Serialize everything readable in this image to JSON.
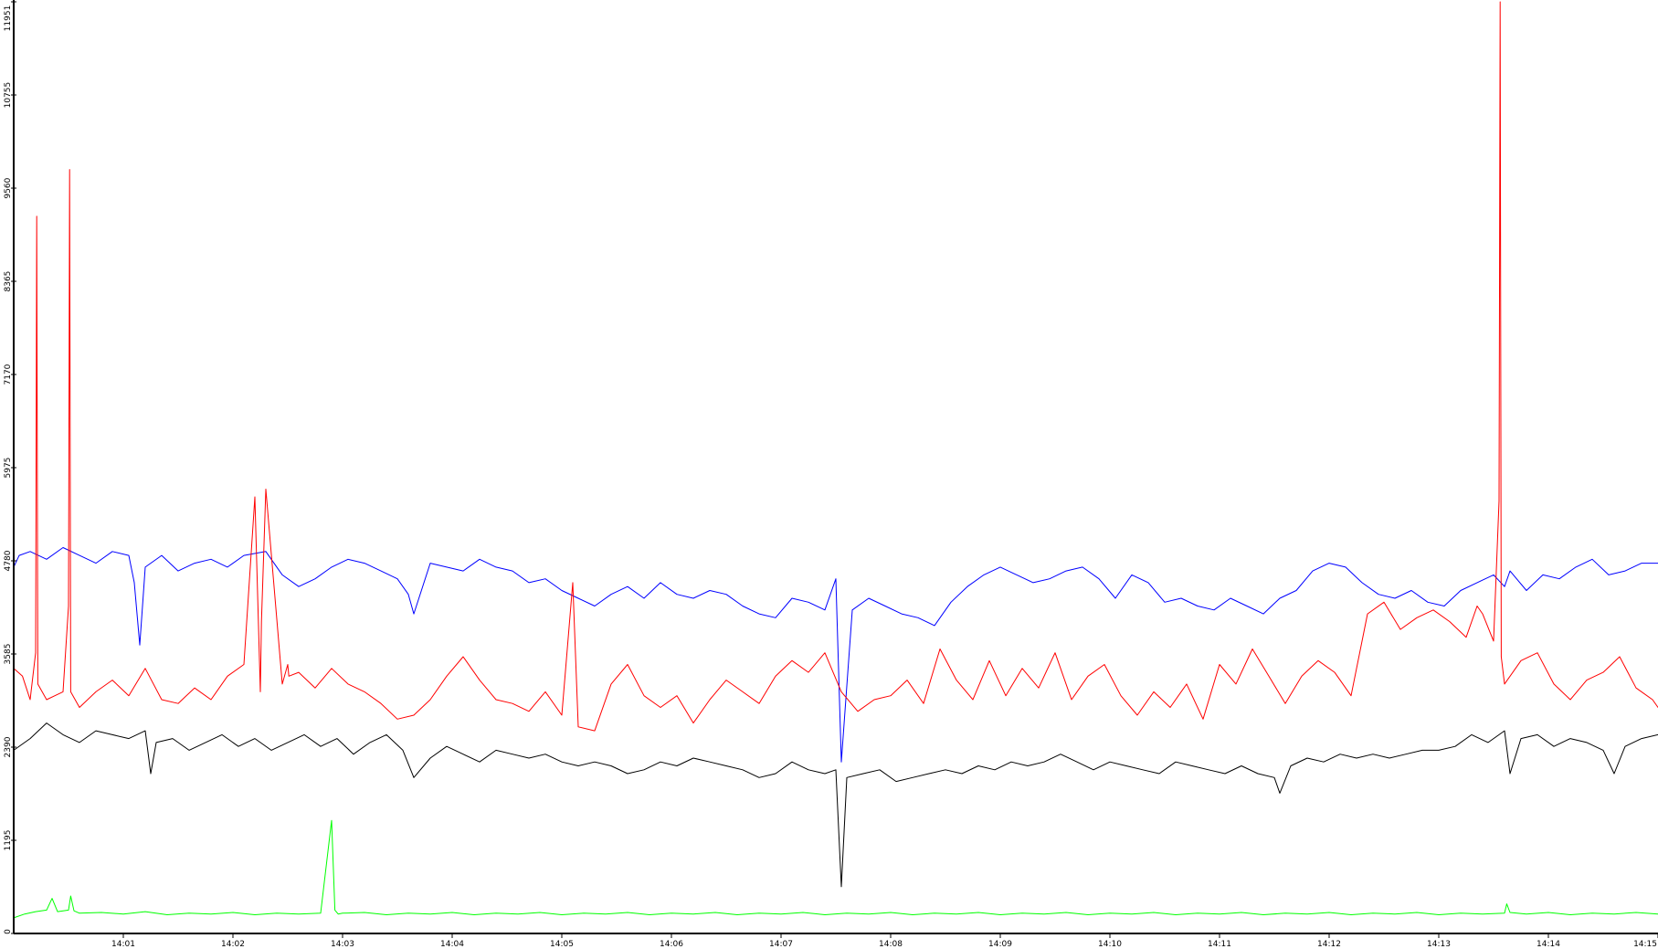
{
  "chart_data": {
    "type": "line",
    "title": "",
    "xlabel": "",
    "ylabel": "",
    "x_tick_labels": [
      "14:01",
      "14:02",
      "14:03",
      "14:04",
      "14:05",
      "14:06",
      "14:07",
      "14:08",
      "14:09",
      "14:10",
      "14:11",
      "14:12",
      "14:13",
      "14:14",
      "14:15"
    ],
    "x_tick_minutes": [
      1,
      2,
      3,
      4,
      5,
      6,
      7,
      8,
      9,
      10,
      11,
      12,
      13,
      14,
      15
    ],
    "y_tick_labels": [
      "0",
      "1195",
      "2390",
      "3585",
      "4780",
      "5975",
      "7170",
      "8365",
      "9560",
      "10755",
      "11951"
    ],
    "y_tick_values": [
      0,
      1195,
      2390,
      3585,
      4780,
      5975,
      7170,
      8365,
      9560,
      10755,
      11951
    ],
    "xlim": [
      0.0,
      15.0
    ],
    "ylim": [
      0,
      11951
    ],
    "grid": false,
    "legend": false,
    "series": [
      {
        "color": "#0000ff",
        "x": [
          0.0,
          0.05,
          0.15,
          0.3,
          0.45,
          0.6,
          0.75,
          0.9,
          1.05,
          1.1,
          1.15,
          1.2,
          1.35,
          1.5,
          1.65,
          1.8,
          1.95,
          2.1,
          2.3,
          2.45,
          2.6,
          2.75,
          2.9,
          3.05,
          3.2,
          3.35,
          3.5,
          3.6,
          3.65,
          3.8,
          3.95,
          4.1,
          4.25,
          4.4,
          4.55,
          4.7,
          4.85,
          5.0,
          5.15,
          5.3,
          5.45,
          5.6,
          5.75,
          5.9,
          6.05,
          6.2,
          6.35,
          6.5,
          6.65,
          6.8,
          6.95,
          7.1,
          7.25,
          7.4,
          7.5,
          7.55,
          7.65,
          7.8,
          7.95,
          8.1,
          8.25,
          8.4,
          8.55,
          8.7,
          8.85,
          9.0,
          9.15,
          9.3,
          9.45,
          9.6,
          9.75,
          9.9,
          10.05,
          10.2,
          10.35,
          10.5,
          10.65,
          10.8,
          10.95,
          11.1,
          11.25,
          11.4,
          11.55,
          11.7,
          11.85,
          12.0,
          12.15,
          12.3,
          12.45,
          12.6,
          12.75,
          12.9,
          13.05,
          13.2,
          13.35,
          13.5,
          13.6,
          13.65,
          13.8,
          13.95,
          14.1,
          14.25,
          14.4,
          14.55,
          14.7,
          14.85,
          15.0
        ],
        "y": [
          4700,
          4850,
          4900,
          4800,
          4950,
          4850,
          4750,
          4900,
          4850,
          4500,
          3700,
          4700,
          4850,
          4650,
          4750,
          4800,
          4700,
          4850,
          4900,
          4600,
          4450,
          4550,
          4700,
          4800,
          4750,
          4650,
          4550,
          4350,
          4100,
          4750,
          4700,
          4650,
          4800,
          4700,
          4650,
          4500,
          4550,
          4400,
          4300,
          4200,
          4350,
          4450,
          4300,
          4500,
          4350,
          4300,
          4400,
          4350,
          4200,
          4100,
          4050,
          4300,
          4250,
          4150,
          4550,
          2200,
          4150,
          4300,
          4200,
          4100,
          4050,
          3950,
          4250,
          4450,
          4600,
          4700,
          4600,
          4500,
          4550,
          4650,
          4700,
          4550,
          4300,
          4600,
          4500,
          4250,
          4300,
          4200,
          4150,
          4300,
          4200,
          4100,
          4300,
          4400,
          4650,
          4750,
          4700,
          4500,
          4350,
          4300,
          4400,
          4250,
          4200,
          4400,
          4500,
          4600,
          4450,
          4650,
          4400,
          4600,
          4550,
          4700,
          4800,
          4600,
          4650,
          4750,
          4750
        ]
      },
      {
        "color": "#ff0000",
        "x": [
          0.0,
          0.08,
          0.15,
          0.2,
          0.21,
          0.22,
          0.3,
          0.45,
          0.5,
          0.51,
          0.52,
          0.6,
          0.75,
          0.9,
          1.05,
          1.2,
          1.35,
          1.5,
          1.65,
          1.8,
          1.95,
          2.1,
          2.2,
          2.25,
          2.26,
          2.3,
          2.45,
          2.5,
          2.51,
          2.6,
          2.75,
          2.9,
          3.05,
          3.2,
          3.35,
          3.5,
          3.65,
          3.8,
          3.95,
          4.1,
          4.25,
          4.4,
          4.55,
          4.7,
          4.85,
          5.0,
          5.1,
          5.15,
          5.3,
          5.45,
          5.6,
          5.75,
          5.9,
          6.05,
          6.2,
          6.35,
          6.5,
          6.65,
          6.8,
          6.95,
          7.1,
          7.25,
          7.4,
          7.55,
          7.7,
          7.85,
          8.0,
          8.15,
          8.3,
          8.45,
          8.6,
          8.75,
          8.9,
          9.05,
          9.2,
          9.35,
          9.5,
          9.65,
          9.8,
          9.95,
          10.1,
          10.25,
          10.4,
          10.55,
          10.7,
          10.85,
          11.0,
          11.15,
          11.3,
          11.45,
          11.6,
          11.75,
          11.9,
          12.05,
          12.2,
          12.35,
          12.5,
          12.65,
          12.8,
          12.95,
          13.1,
          13.25,
          13.35,
          13.4,
          13.5,
          13.55,
          13.56,
          13.57,
          13.6,
          13.75,
          13.9,
          14.05,
          14.2,
          14.35,
          14.5,
          14.65,
          14.8,
          14.95,
          15.0
        ],
        "y": [
          3400,
          3300,
          3000,
          3600,
          9200,
          3200,
          3000,
          3100,
          4200,
          9800,
          3100,
          2900,
          3100,
          3250,
          3050,
          3400,
          3000,
          2950,
          3150,
          3000,
          3300,
          3450,
          5600,
          3100,
          4000,
          5700,
          3200,
          3450,
          3300,
          3350,
          3150,
          3400,
          3200,
          3100,
          2950,
          2750,
          2800,
          3000,
          3300,
          3550,
          3250,
          3000,
          2950,
          2850,
          3100,
          2800,
          4500,
          2650,
          2600,
          3200,
          3450,
          3050,
          2900,
          3050,
          2700,
          3000,
          3250,
          3100,
          2950,
          3300,
          3500,
          3350,
          3600,
          3100,
          2850,
          3000,
          3050,
          3250,
          2950,
          3650,
          3250,
          3000,
          3500,
          3050,
          3400,
          3150,
          3600,
          3000,
          3300,
          3450,
          3050,
          2800,
          3100,
          2900,
          3200,
          2750,
          3450,
          3200,
          3650,
          3300,
          2950,
          3300,
          3500,
          3350,
          3050,
          4100,
          4250,
          3900,
          4050,
          4150,
          4000,
          3800,
          4200,
          4100,
          3750,
          5550,
          11951,
          3550,
          3200,
          3500,
          3600,
          3200,
          3000,
          3250,
          3350,
          3550,
          3150,
          3000,
          2900
        ]
      },
      {
        "color": "#000000",
        "x": [
          0.0,
          0.15,
          0.3,
          0.45,
          0.6,
          0.75,
          0.9,
          1.05,
          1.2,
          1.25,
          1.3,
          1.45,
          1.6,
          1.75,
          1.9,
          2.05,
          2.2,
          2.35,
          2.5,
          2.65,
          2.8,
          2.95,
          3.1,
          3.25,
          3.4,
          3.55,
          3.65,
          3.8,
          3.95,
          4.1,
          4.25,
          4.4,
          4.55,
          4.7,
          4.85,
          5.0,
          5.15,
          5.3,
          5.45,
          5.6,
          5.75,
          5.9,
          6.05,
          6.2,
          6.35,
          6.5,
          6.65,
          6.8,
          6.95,
          7.1,
          7.25,
          7.4,
          7.5,
          7.55,
          7.6,
          7.75,
          7.9,
          8.05,
          8.2,
          8.35,
          8.5,
          8.65,
          8.8,
          8.95,
          9.1,
          9.25,
          9.4,
          9.55,
          9.7,
          9.85,
          10.0,
          10.15,
          10.3,
          10.45,
          10.6,
          10.75,
          10.9,
          11.05,
          11.2,
          11.35,
          11.5,
          11.55,
          11.65,
          11.8,
          11.95,
          12.1,
          12.25,
          12.4,
          12.55,
          12.7,
          12.85,
          13.0,
          13.15,
          13.3,
          13.45,
          13.6,
          13.65,
          13.75,
          13.9,
          14.05,
          14.2,
          14.35,
          14.5,
          14.6,
          14.7,
          14.85,
          15.0
        ],
        "y": [
          2350,
          2500,
          2700,
          2550,
          2450,
          2600,
          2550,
          2500,
          2600,
          2050,
          2450,
          2500,
          2350,
          2450,
          2550,
          2400,
          2500,
          2350,
          2450,
          2550,
          2400,
          2500,
          2300,
          2450,
          2550,
          2350,
          2000,
          2250,
          2400,
          2300,
          2200,
          2350,
          2300,
          2250,
          2300,
          2200,
          2150,
          2200,
          2150,
          2050,
          2100,
          2200,
          2150,
          2250,
          2200,
          2150,
          2100,
          2000,
          2050,
          2200,
          2100,
          2050,
          2100,
          600,
          2000,
          2050,
          2100,
          1950,
          2000,
          2050,
          2100,
          2050,
          2150,
          2100,
          2200,
          2150,
          2200,
          2300,
          2200,
          2100,
          2200,
          2150,
          2100,
          2050,
          2200,
          2150,
          2100,
          2050,
          2150,
          2050,
          2000,
          1800,
          2150,
          2250,
          2200,
          2300,
          2250,
          2300,
          2250,
          2300,
          2350,
          2350,
          2400,
          2550,
          2450,
          2600,
          2050,
          2500,
          2550,
          2400,
          2500,
          2450,
          2350,
          2050,
          2400,
          2500,
          2550
        ]
      },
      {
        "color": "#00ff00",
        "x": [
          0.0,
          0.1,
          0.2,
          0.3,
          0.35,
          0.4,
          0.5,
          0.52,
          0.55,
          0.6,
          0.8,
          1.0,
          1.2,
          1.4,
          1.6,
          1.8,
          2.0,
          2.2,
          2.4,
          2.6,
          2.8,
          2.9,
          2.93,
          2.96,
          3.0,
          3.2,
          3.4,
          3.6,
          3.8,
          4.0,
          4.2,
          4.4,
          4.6,
          4.8,
          5.0,
          5.2,
          5.4,
          5.6,
          5.8,
          6.0,
          6.2,
          6.4,
          6.6,
          6.8,
          7.0,
          7.2,
          7.4,
          7.6,
          7.8,
          8.0,
          8.2,
          8.4,
          8.6,
          8.8,
          9.0,
          9.2,
          9.4,
          9.6,
          9.8,
          10.0,
          10.2,
          10.4,
          10.6,
          10.8,
          11.0,
          11.2,
          11.4,
          11.6,
          11.8,
          12.0,
          12.2,
          12.4,
          12.6,
          12.8,
          13.0,
          13.2,
          13.4,
          13.6,
          13.62,
          13.65,
          13.8,
          14.0,
          14.2,
          14.4,
          14.6,
          14.8,
          15.0
        ],
        "y": [
          200,
          250,
          280,
          300,
          450,
          280,
          300,
          480,
          290,
          260,
          270,
          250,
          280,
          240,
          260,
          250,
          270,
          240,
          260,
          250,
          260,
          1450,
          300,
          250,
          260,
          270,
          240,
          260,
          250,
          270,
          240,
          260,
          250,
          270,
          240,
          260,
          250,
          270,
          240,
          260,
          250,
          270,
          240,
          260,
          250,
          270,
          240,
          260,
          250,
          270,
          240,
          260,
          250,
          270,
          240,
          260,
          250,
          270,
          240,
          260,
          250,
          270,
          240,
          260,
          250,
          270,
          240,
          260,
          250,
          270,
          240,
          260,
          250,
          270,
          240,
          260,
          250,
          260,
          380,
          270,
          250,
          270,
          240,
          260,
          250,
          270,
          250
        ]
      }
    ]
  }
}
